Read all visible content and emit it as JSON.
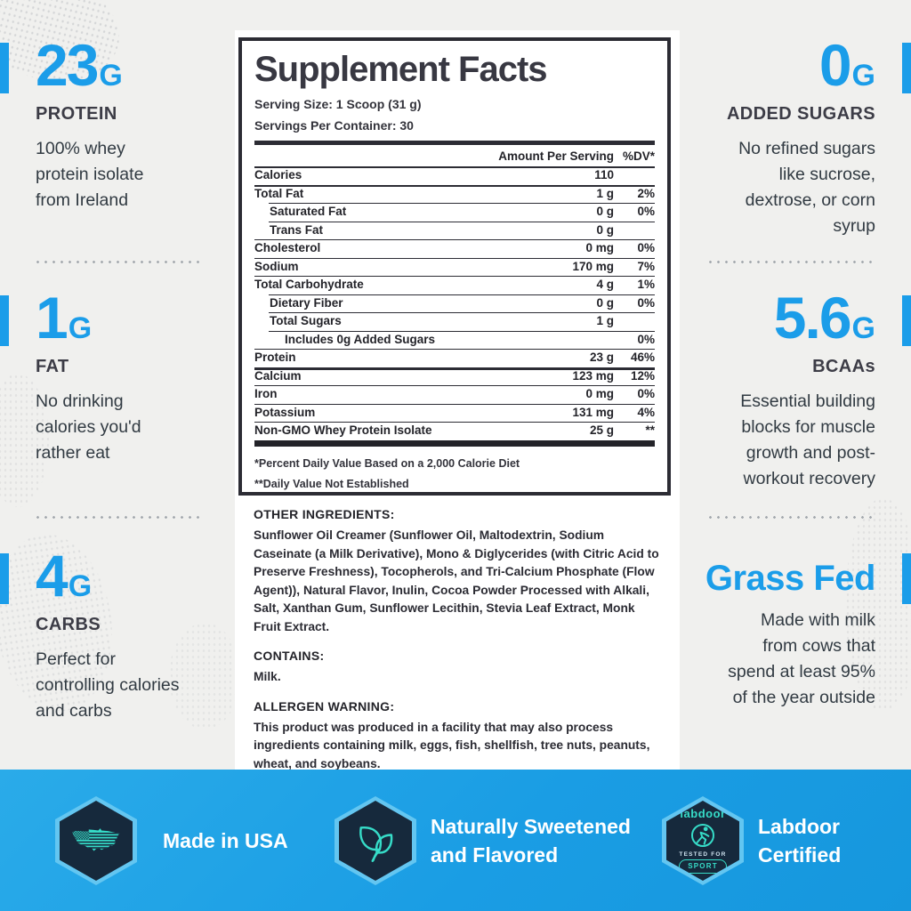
{
  "colors": {
    "accent_blue": "#1b9de9",
    "footer_blue": "#1a9de4",
    "hex_navy": "#16293c",
    "hex_border": "#63c6f1",
    "icon_teal": "#36dcc8",
    "dark_text": "#33333b",
    "background": "#f0f0ee"
  },
  "left_column": {
    "stats": [
      {
        "value": "23",
        "unit": "G",
        "label": "PROTEIN",
        "description": "100% whey\nprotein isolate\nfrom Ireland"
      },
      {
        "value": "1",
        "unit": "G",
        "label": "FAT",
        "description": "No drinking\ncalories you'd\nrather eat"
      },
      {
        "value": "4",
        "unit": "G",
        "label": "CARBS",
        "description": "Perfect for\ncontrolling calories\nand carbs"
      }
    ]
  },
  "right_column": {
    "stats": [
      {
        "value": "0",
        "unit": "G",
        "label": "ADDED SUGARS",
        "description": "No refined sugars\nlike sucrose,\ndextrose, or corn\nsyrup"
      },
      {
        "value": "5.6",
        "unit": "G",
        "label": "BCAAs",
        "description": "Essential building\nblocks for muscle\ngrowth and post-\nworkout recovery"
      },
      {
        "big_text": "Grass Fed",
        "description": "Made with milk\nfrom cows that\nspend at least 95%\nof the year outside"
      }
    ]
  },
  "supplement_facts": {
    "title": "Supplement Facts",
    "serving_size": "Serving Size: 1 Scoop (31 g)",
    "servings_per_container": "Servings Per Container: 30",
    "amount_header": "Amount Per Serving",
    "dv_header": "%DV*",
    "rows": [
      {
        "label": "Calories",
        "amount": "110",
        "dv": "",
        "indent": 0
      },
      {
        "label": "Total Fat",
        "amount": "1 g",
        "dv": "2%",
        "indent": 0
      },
      {
        "label": "Saturated Fat",
        "amount": "0 g",
        "dv": "0%",
        "indent": 1
      },
      {
        "label": "Trans Fat",
        "amount": "0 g",
        "dv": "",
        "indent": 1
      },
      {
        "label": "Cholesterol",
        "amount": "0 mg",
        "dv": "0%",
        "indent": 0
      },
      {
        "label": "Sodium",
        "amount": "170 mg",
        "dv": "7%",
        "indent": 0
      },
      {
        "label": "Total Carbohydrate",
        "amount": "4 g",
        "dv": "1%",
        "indent": 0
      },
      {
        "label": "Dietary Fiber",
        "amount": "0 g",
        "dv": "0%",
        "indent": 1
      },
      {
        "label": "Total Sugars",
        "amount": "1 g",
        "dv": "",
        "indent": 1
      },
      {
        "label": "Includes 0g Added Sugars",
        "amount": "",
        "dv": "0%",
        "indent": 2
      },
      {
        "label": "Protein",
        "amount": "23 g",
        "dv": "46%",
        "indent": 0
      },
      {
        "label": "Calcium",
        "amount": "123 mg",
        "dv": "12%",
        "indent": 0
      },
      {
        "label": "Iron",
        "amount": "0 mg",
        "dv": "0%",
        "indent": 0
      },
      {
        "label": "Potassium",
        "amount": "131 mg",
        "dv": "4%",
        "indent": 0
      },
      {
        "label": "Non-GMO Whey Protein Isolate",
        "amount": "25 g",
        "dv": "**",
        "indent": 0
      }
    ],
    "footnote1": "*Percent Daily Value Based on a 2,000 Calorie Diet",
    "footnote2": "**Daily Value Not Established"
  },
  "details": {
    "other_ingredients_heading": "OTHER INGREDIENTS:",
    "other_ingredients": "Sunflower Oil Creamer (Sunflower Oil, Maltodextrin, Sodium Caseinate (a Milk Derivative), Mono & Diglycerides (with Citric Acid to Preserve Freshness), Tocopherols, and Tri-Calcium Phosphate (Flow Agent)), Natural Flavor, Inulin, Cocoa Powder Processed with Alkali, Salt, Xanthan Gum, Sunflower Lecithin, Stevia Leaf Extract, Monk Fruit Extract.",
    "contains_heading": "CONTAINS:",
    "contains": "Milk.",
    "allergen_heading": "ALLERGEN WARNING:",
    "allergen": "This product was produced in a facility that may also process ingredients containing milk, eggs, fish, shellfish, tree nuts, peanuts, wheat, and soybeans."
  },
  "footer": {
    "badges": [
      {
        "icon": "usa-map",
        "label": "Made in USA"
      },
      {
        "icon": "leaves",
        "label": "Naturally Sweetened\nand Flavored"
      },
      {
        "icon": "labdoor",
        "label": "Labdoor\nCertified",
        "logo_text": "labdoor",
        "tested_for": "TESTED FOR",
        "sport": "SPORT"
      }
    ]
  }
}
